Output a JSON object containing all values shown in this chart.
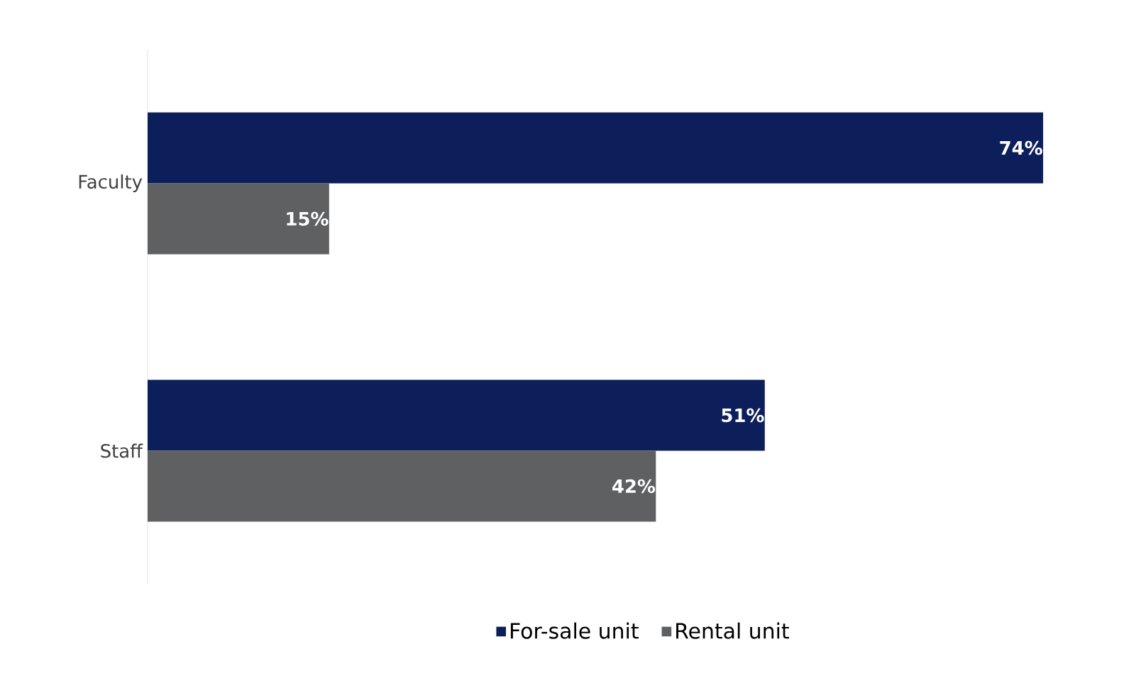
{
  "chart_data": {
    "type": "bar",
    "orientation": "horizontal",
    "categories": [
      "Faculty",
      "Staff"
    ],
    "series": [
      {
        "name": "For-sale unit",
        "color": "#0d1f5a",
        "values": [
          74,
          51
        ],
        "value_labels": [
          "74%",
          "51%"
        ]
      },
      {
        "name": "Rental unit",
        "color": "#5f6062",
        "values": [
          15,
          42
        ],
        "value_labels": [
          "15%",
          "42%"
        ]
      }
    ],
    "legend": "bottom"
  }
}
